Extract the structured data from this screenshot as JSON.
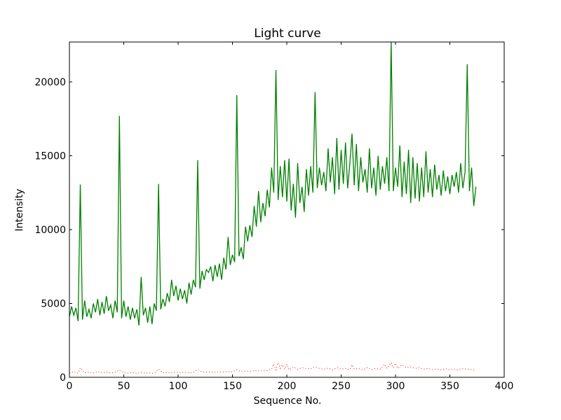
{
  "chart_data": {
    "type": "line",
    "title": "Light curve",
    "xlabel": "Sequence No.",
    "ylabel": "Intensity",
    "xlim": [
      0,
      400
    ],
    "ylim": [
      0,
      22700
    ],
    "xticks": [
      0,
      50,
      100,
      150,
      200,
      250,
      300,
      350,
      400
    ],
    "yticks": [
      0,
      5000,
      10000,
      15000,
      20000
    ],
    "xtick_labels": [
      "0",
      "50",
      "100",
      "150",
      "200",
      "250",
      "300",
      "350",
      "400"
    ],
    "ytick_labels": [
      "0",
      "5000",
      "10000",
      "15000",
      "20000"
    ],
    "grid": false,
    "legend": "none",
    "series": [
      {
        "style": "solid",
        "color": "#008000",
        "points": [
          [
            0,
            4100
          ],
          [
            2,
            4800
          ],
          [
            4,
            4200
          ],
          [
            6,
            4700
          ],
          [
            8,
            3800
          ],
          [
            10,
            13050
          ],
          [
            12,
            3900
          ],
          [
            14,
            5200
          ],
          [
            16,
            4100
          ],
          [
            18,
            4600
          ],
          [
            20,
            4000
          ],
          [
            22,
            5000
          ],
          [
            24,
            4400
          ],
          [
            26,
            5300
          ],
          [
            28,
            4200
          ],
          [
            30,
            5100
          ],
          [
            32,
            4300
          ],
          [
            34,
            5500
          ],
          [
            36,
            4500
          ],
          [
            38,
            4900
          ],
          [
            40,
            4000
          ],
          [
            42,
            5200
          ],
          [
            44,
            4400
          ],
          [
            46,
            17700
          ],
          [
            48,
            4000
          ],
          [
            50,
            5200
          ],
          [
            52,
            4100
          ],
          [
            54,
            4800
          ],
          [
            56,
            3900
          ],
          [
            58,
            4700
          ],
          [
            60,
            4000
          ],
          [
            62,
            4600
          ],
          [
            64,
            3500
          ],
          [
            66,
            6800
          ],
          [
            68,
            4200
          ],
          [
            70,
            4700
          ],
          [
            72,
            3700
          ],
          [
            74,
            4800
          ],
          [
            76,
            3600
          ],
          [
            78,
            5000
          ],
          [
            80,
            4500
          ],
          [
            82,
            13100
          ],
          [
            84,
            4600
          ],
          [
            86,
            5300
          ],
          [
            88,
            4800
          ],
          [
            90,
            5700
          ],
          [
            92,
            5100
          ],
          [
            94,
            6600
          ],
          [
            96,
            5500
          ],
          [
            98,
            6200
          ],
          [
            100,
            5200
          ],
          [
            102,
            6000
          ],
          [
            104,
            5300
          ],
          [
            106,
            5900
          ],
          [
            108,
            5000
          ],
          [
            110,
            6400
          ],
          [
            112,
            5600
          ],
          [
            114,
            6600
          ],
          [
            116,
            6100
          ],
          [
            118,
            14700
          ],
          [
            120,
            6000
          ],
          [
            122,
            7200
          ],
          [
            124,
            6600
          ],
          [
            126,
            7300
          ],
          [
            128,
            7100
          ],
          [
            130,
            7500
          ],
          [
            132,
            6500
          ],
          [
            134,
            7600
          ],
          [
            136,
            6800
          ],
          [
            138,
            7700
          ],
          [
            140,
            6600
          ],
          [
            142,
            8100
          ],
          [
            144,
            7300
          ],
          [
            146,
            9500
          ],
          [
            148,
            7600
          ],
          [
            150,
            8300
          ],
          [
            152,
            7800
          ],
          [
            154,
            19100
          ],
          [
            156,
            8200
          ],
          [
            158,
            8800
          ],
          [
            160,
            8000
          ],
          [
            162,
            10200
          ],
          [
            164,
            9200
          ],
          [
            166,
            10300
          ],
          [
            168,
            9500
          ],
          [
            170,
            11600
          ],
          [
            172,
            10200
          ],
          [
            174,
            12600
          ],
          [
            176,
            10500
          ],
          [
            178,
            11800
          ],
          [
            180,
            10900
          ],
          [
            182,
            12700
          ],
          [
            184,
            11500
          ],
          [
            186,
            14200
          ],
          [
            188,
            12500
          ],
          [
            190,
            20800
          ],
          [
            192,
            12000
          ],
          [
            194,
            14300
          ],
          [
            196,
            12200
          ],
          [
            198,
            14700
          ],
          [
            200,
            11900
          ],
          [
            202,
            14800
          ],
          [
            204,
            11300
          ],
          [
            206,
            13100
          ],
          [
            208,
            10800
          ],
          [
            210,
            14500
          ],
          [
            212,
            11800
          ],
          [
            214,
            12900
          ],
          [
            216,
            11200
          ],
          [
            218,
            14100
          ],
          [
            220,
            12300
          ],
          [
            222,
            14300
          ],
          [
            224,
            12500
          ],
          [
            226,
            19300
          ],
          [
            228,
            12800
          ],
          [
            230,
            14200
          ],
          [
            232,
            13000
          ],
          [
            234,
            13900
          ],
          [
            236,
            12600
          ],
          [
            238,
            15500
          ],
          [
            240,
            13200
          ],
          [
            242,
            14900
          ],
          [
            244,
            12400
          ],
          [
            246,
            16200
          ],
          [
            248,
            12700
          ],
          [
            250,
            15400
          ],
          [
            252,
            13100
          ],
          [
            254,
            15900
          ],
          [
            256,
            12800
          ],
          [
            258,
            14500
          ],
          [
            260,
            16500
          ],
          [
            262,
            13000
          ],
          [
            264,
            15800
          ],
          [
            266,
            12600
          ],
          [
            268,
            14900
          ],
          [
            270,
            13200
          ],
          [
            272,
            14100
          ],
          [
            274,
            12500
          ],
          [
            276,
            15500
          ],
          [
            278,
            12800
          ],
          [
            280,
            14200
          ],
          [
            282,
            12300
          ],
          [
            284,
            15000
          ],
          [
            286,
            12700
          ],
          [
            288,
            14300
          ],
          [
            290,
            13100
          ],
          [
            292,
            14900
          ],
          [
            294,
            12600
          ],
          [
            296,
            22700
          ],
          [
            298,
            12600
          ],
          [
            300,
            14200
          ],
          [
            302,
            12900
          ],
          [
            304,
            15700
          ],
          [
            306,
            12200
          ],
          [
            308,
            14600
          ],
          [
            310,
            12400
          ],
          [
            312,
            15400
          ],
          [
            314,
            11800
          ],
          [
            316,
            14900
          ],
          [
            318,
            12100
          ],
          [
            320,
            14500
          ],
          [
            322,
            11900
          ],
          [
            324,
            14200
          ],
          [
            326,
            12200
          ],
          [
            328,
            15300
          ],
          [
            330,
            12500
          ],
          [
            332,
            14100
          ],
          [
            334,
            12200
          ],
          [
            336,
            14400
          ],
          [
            338,
            12700
          ],
          [
            340,
            13700
          ],
          [
            342,
            12300
          ],
          [
            344,
            14000
          ],
          [
            346,
            12600
          ],
          [
            348,
            13600
          ],
          [
            350,
            12400
          ],
          [
            352,
            13700
          ],
          [
            354,
            12900
          ],
          [
            356,
            13900
          ],
          [
            358,
            12500
          ],
          [
            360,
            14500
          ],
          [
            362,
            12800
          ],
          [
            364,
            13900
          ],
          [
            366,
            21200
          ],
          [
            368,
            12600
          ],
          [
            370,
            14200
          ],
          [
            372,
            11600
          ],
          [
            374,
            12900
          ]
        ]
      },
      {
        "style": "dotted",
        "color": "#ff0000",
        "points": [
          [
            0,
            300
          ],
          [
            4,
            400
          ],
          [
            8,
            280
          ],
          [
            10,
            650
          ],
          [
            14,
            300
          ],
          [
            18,
            350
          ],
          [
            22,
            280
          ],
          [
            26,
            400
          ],
          [
            30,
            300
          ],
          [
            34,
            360
          ],
          [
            38,
            280
          ],
          [
            42,
            350
          ],
          [
            46,
            500
          ],
          [
            50,
            300
          ],
          [
            54,
            280
          ],
          [
            58,
            320
          ],
          [
            62,
            260
          ],
          [
            66,
            330
          ],
          [
            70,
            280
          ],
          [
            74,
            300
          ],
          [
            78,
            260
          ],
          [
            82,
            550
          ],
          [
            86,
            300
          ],
          [
            90,
            330
          ],
          [
            94,
            300
          ],
          [
            98,
            370
          ],
          [
            102,
            320
          ],
          [
            106,
            350
          ],
          [
            110,
            300
          ],
          [
            114,
            330
          ],
          [
            118,
            520
          ],
          [
            122,
            360
          ],
          [
            126,
            340
          ],
          [
            130,
            370
          ],
          [
            134,
            330
          ],
          [
            138,
            380
          ],
          [
            142,
            350
          ],
          [
            146,
            400
          ],
          [
            150,
            370
          ],
          [
            154,
            500
          ],
          [
            158,
            380
          ],
          [
            162,
            420
          ],
          [
            166,
            400
          ],
          [
            170,
            450
          ],
          [
            174,
            430
          ],
          [
            178,
            480
          ],
          [
            182,
            450
          ],
          [
            186,
            550
          ],
          [
            188,
            900
          ],
          [
            190,
            500
          ],
          [
            192,
            1000
          ],
          [
            194,
            600
          ],
          [
            196,
            850
          ],
          [
            198,
            550
          ],
          [
            200,
            900
          ],
          [
            202,
            500
          ],
          [
            206,
            700
          ],
          [
            210,
            550
          ],
          [
            214,
            650
          ],
          [
            218,
            600
          ],
          [
            222,
            580
          ],
          [
            226,
            700
          ],
          [
            230,
            600
          ],
          [
            234,
            550
          ],
          [
            238,
            620
          ],
          [
            242,
            500
          ],
          [
            246,
            650
          ],
          [
            250,
            550
          ],
          [
            254,
            600
          ],
          [
            258,
            520
          ],
          [
            260,
            850
          ],
          [
            262,
            550
          ],
          [
            266,
            600
          ],
          [
            270,
            500
          ],
          [
            274,
            650
          ],
          [
            278,
            520
          ],
          [
            282,
            600
          ],
          [
            286,
            550
          ],
          [
            290,
            900
          ],
          [
            292,
            600
          ],
          [
            294,
            800
          ],
          [
            296,
            1000
          ],
          [
            298,
            650
          ],
          [
            300,
            950
          ],
          [
            302,
            600
          ],
          [
            306,
            850
          ],
          [
            310,
            650
          ],
          [
            314,
            700
          ],
          [
            318,
            600
          ],
          [
            322,
            650
          ],
          [
            326,
            550
          ],
          [
            330,
            600
          ],
          [
            334,
            520
          ],
          [
            338,
            560
          ],
          [
            342,
            500
          ],
          [
            346,
            580
          ],
          [
            350,
            520
          ],
          [
            354,
            560
          ],
          [
            358,
            500
          ],
          [
            362,
            600
          ],
          [
            366,
            550
          ],
          [
            370,
            520
          ],
          [
            374,
            480
          ]
        ]
      }
    ]
  }
}
